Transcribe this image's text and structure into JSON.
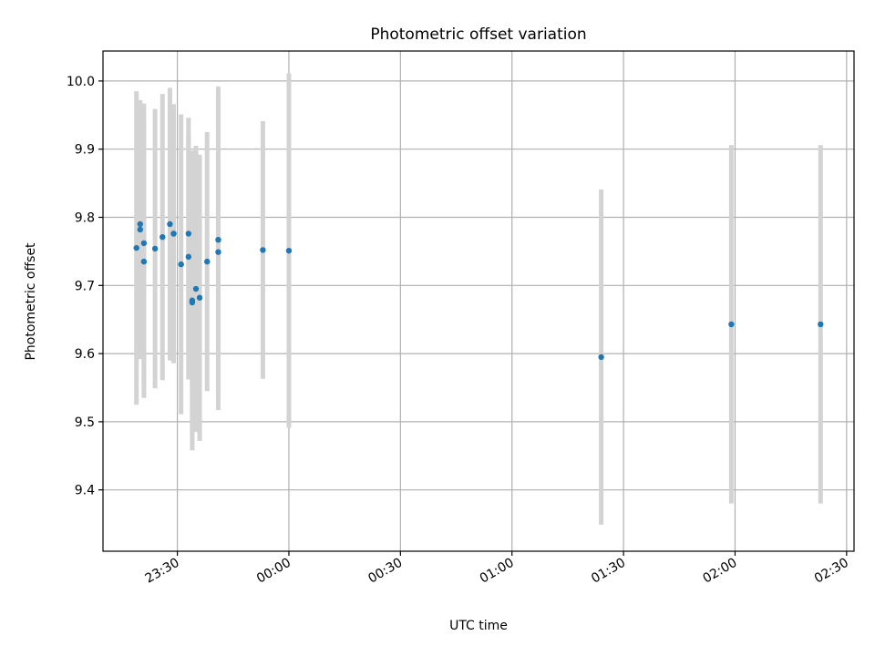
{
  "chart_data": {
    "type": "scatter",
    "title": "Photometric offset variation",
    "xlabel": "UTC time",
    "ylabel": "Photometric offset",
    "x_unit": "UTC HH:MM (2-day span: 23:xx on day 1, 00:xx-02:xx on day 2)",
    "xlim": [
      "23:10",
      "02:32"
    ],
    "ylim": [
      9.31,
      10.044
    ],
    "x_ticks": [
      "23:30",
      "00:00",
      "00:30",
      "01:00",
      "01:30",
      "02:00",
      "02:30"
    ],
    "y_ticks": [
      "9.4",
      "9.5",
      "9.6",
      "9.7",
      "9.8",
      "9.9",
      "10.0"
    ],
    "grid": true,
    "point_color": "#1f77b4",
    "errorbar_color": "#d3d3d3",
    "points": [
      {
        "x": "23:19",
        "y": 9.755,
        "err": 0.23
      },
      {
        "x": "23:20",
        "y": 9.79,
        "err": 0.175
      },
      {
        "x": "23:20",
        "y": 9.782,
        "err": 0.19
      },
      {
        "x": "23:21",
        "y": 9.762,
        "err": 0.205
      },
      {
        "x": "23:21",
        "y": 9.735,
        "err": 0.2
      },
      {
        "x": "23:24",
        "y": 9.754,
        "err": 0.205
      },
      {
        "x": "23:26",
        "y": 9.771,
        "err": 0.21
      },
      {
        "x": "23:28",
        "y": 9.79,
        "err": 0.2
      },
      {
        "x": "23:29",
        "y": 9.776,
        "err": 0.19
      },
      {
        "x": "23:29",
        "y": 9.776,
        "err": 0.19
      },
      {
        "x": "23:31",
        "y": 9.731,
        "err": 0.22
      },
      {
        "x": "23:33",
        "y": 9.776,
        "err": 0.17
      },
      {
        "x": "23:33",
        "y": 9.742,
        "err": 0.18
      },
      {
        "x": "23:34",
        "y": 9.678,
        "err": 0.22
      },
      {
        "x": "23:34",
        "y": 9.675,
        "err": 0.19
      },
      {
        "x": "23:35",
        "y": 9.695,
        "err": 0.21
      },
      {
        "x": "23:36",
        "y": 9.682,
        "err": 0.21
      },
      {
        "x": "23:38",
        "y": 9.735,
        "err": 0.19
      },
      {
        "x": "23:41",
        "y": 9.767,
        "err": 0.225
      },
      {
        "x": "23:41",
        "y": 9.749,
        "err": 0.232
      },
      {
        "x": "23:53",
        "y": 9.752,
        "err": 0.189
      },
      {
        "x": "00:00",
        "y": 9.751,
        "err": 0.26
      },
      {
        "x": "01:24",
        "y": 9.595,
        "err": 0.246
      },
      {
        "x": "01:59",
        "y": 9.643,
        "err": 0.263
      },
      {
        "x": "02:23",
        "y": 9.643,
        "err": 0.263
      }
    ]
  }
}
